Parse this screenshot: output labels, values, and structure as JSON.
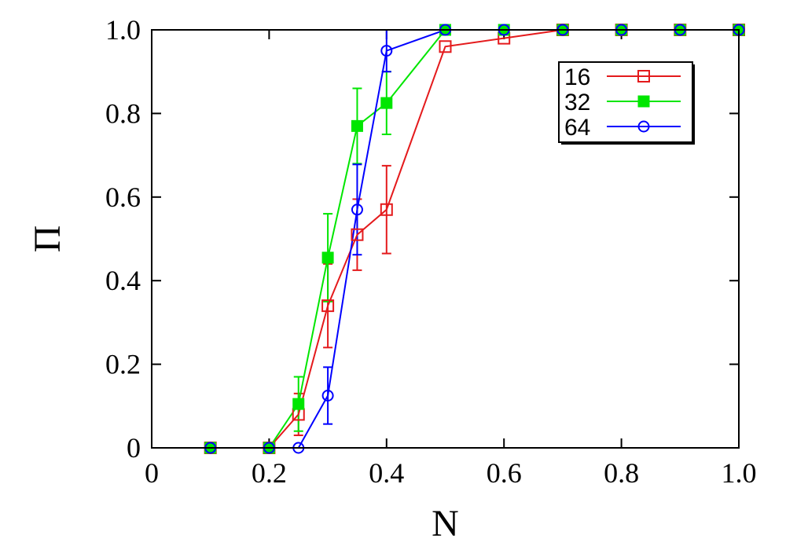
{
  "chart_data": {
    "type": "line",
    "xlabel": "N",
    "ylabel": "Π",
    "xlim": [
      0,
      1.0
    ],
    "ylim": [
      0,
      1.0
    ],
    "x_ticks": [
      "0",
      "0.2",
      "0.4",
      "0.6",
      "0.8",
      "1.0"
    ],
    "y_ticks": [
      "0",
      "0.2",
      "0.4",
      "0.6",
      "0.8",
      "1.0"
    ],
    "grid": false,
    "legend_position": "top-right",
    "series": [
      {
        "name": "16",
        "color": "#e41a1c",
        "marker": "open-square",
        "x": [
          0.1,
          0.2,
          0.25,
          0.3,
          0.35,
          0.4,
          0.5,
          0.6,
          0.7,
          0.8,
          0.9,
          1.0
        ],
        "y": [
          0.0,
          0.0,
          0.08,
          0.34,
          0.51,
          0.57,
          0.96,
          0.98,
          1.0,
          1.0,
          1.0,
          1.0
        ],
        "err": [
          0,
          0,
          0.05,
          0.1,
          0.085,
          0.105,
          0,
          0,
          0,
          0,
          0,
          0
        ]
      },
      {
        "name": "32",
        "color": "#00e600",
        "marker": "filled-square",
        "x": [
          0.1,
          0.2,
          0.25,
          0.3,
          0.35,
          0.4,
          0.5,
          0.6,
          0.7,
          0.8,
          0.9,
          1.0
        ],
        "y": [
          0.0,
          0.0,
          0.105,
          0.455,
          0.77,
          0.825,
          1.0,
          1.0,
          1.0,
          1.0,
          1.0,
          1.0
        ],
        "err": [
          0,
          0,
          0.065,
          0.105,
          0.09,
          0.075,
          0,
          0,
          0,
          0,
          0,
          0
        ]
      },
      {
        "name": "64",
        "color": "#0000ff",
        "marker": "open-circle",
        "x": [
          0.1,
          0.2,
          0.25,
          0.3,
          0.35,
          0.4,
          0.5,
          0.6,
          0.7,
          0.8,
          0.9,
          1.0
        ],
        "y": [
          0.0,
          0.0,
          0.0,
          0.125,
          0.57,
          0.95,
          1.0,
          1.0,
          1.0,
          1.0,
          1.0,
          1.0
        ],
        "err": [
          0,
          0,
          0,
          0.068,
          0.108,
          0.05,
          0,
          0,
          0,
          0,
          0,
          0
        ]
      }
    ]
  }
}
